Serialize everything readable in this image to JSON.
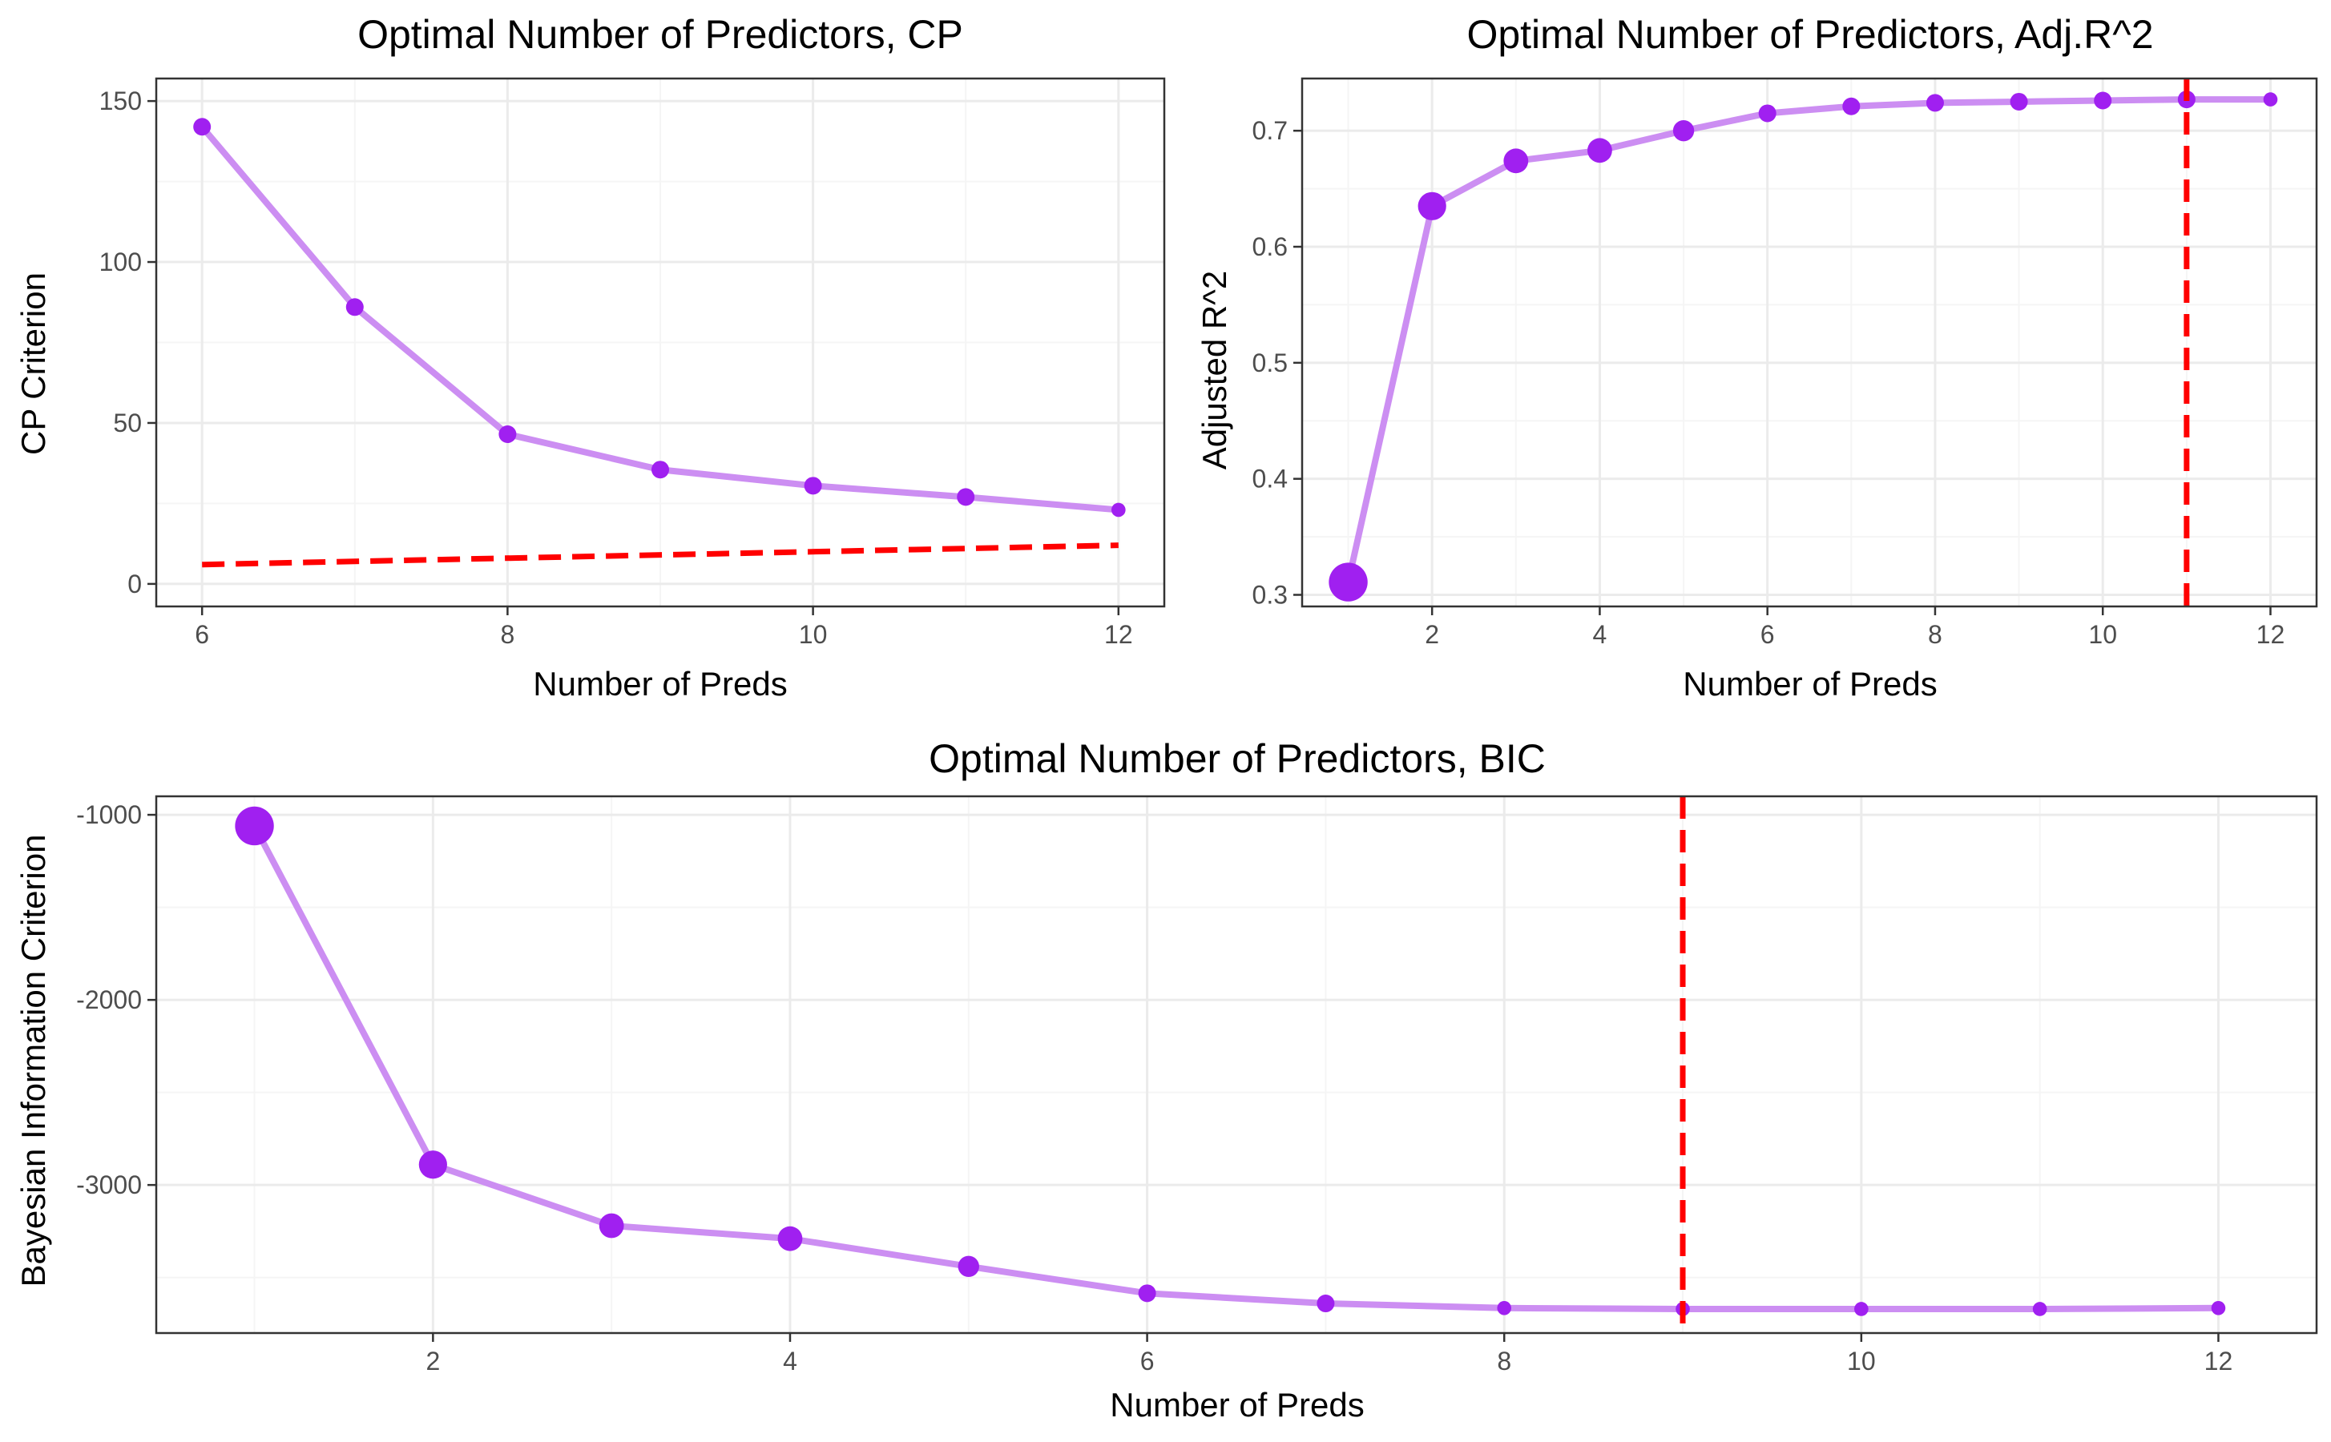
{
  "colors": {
    "line": "#cc8ef2",
    "point": "#a020f0",
    "ref": "#ff0000",
    "grid_major": "#ebebeb",
    "grid_minor": "#f5f5f5",
    "panel_border": "#333333"
  },
  "chart_data": [
    {
      "id": "cp",
      "type": "line",
      "title": "Optimal Number of Predictors, CP",
      "xlabel": "Number of Preds",
      "ylabel": "CP Criterion",
      "xlim": [
        5.7,
        12.3
      ],
      "ylim": [
        -7,
        157
      ],
      "xticks": [
        6,
        8,
        10,
        12
      ],
      "yticks": [
        0,
        50,
        100,
        150
      ],
      "grid": true,
      "series": [
        {
          "x": [
            6,
            7,
            8,
            9,
            10,
            11,
            12
          ],
          "y": [
            142,
            86,
            46.5,
            35.5,
            30.5,
            27,
            23
          ],
          "point_size": [
            5,
            5,
            5,
            5,
            5,
            5,
            4
          ]
        }
      ],
      "reference_line": {
        "style": "dashed",
        "x": [
          6,
          12
        ],
        "y": [
          6,
          12
        ]
      }
    },
    {
      "id": "adjr2",
      "type": "line",
      "title": "Optimal Number of Predictors, Adj.R^2",
      "xlabel": "Number of Preds",
      "ylabel": "Adjusted R^2",
      "xlim": [
        0.45,
        12.55
      ],
      "ylim": [
        0.29,
        0.745
      ],
      "xticks": [
        2,
        4,
        6,
        8,
        10,
        12
      ],
      "yticks": [
        0.3,
        0.4,
        0.5,
        0.6,
        0.7
      ],
      "grid": true,
      "series": [
        {
          "x": [
            1,
            2,
            3,
            4,
            5,
            6,
            7,
            8,
            9,
            10,
            11,
            12
          ],
          "y": [
            0.311,
            0.635,
            0.674,
            0.683,
            0.7,
            0.715,
            0.721,
            0.724,
            0.725,
            0.726,
            0.727,
            0.727
          ],
          "point_size": [
            11,
            8,
            7,
            7,
            6,
            5,
            5,
            5,
            5,
            5,
            5,
            4
          ]
        }
      ],
      "reference_line": {
        "style": "dashed",
        "vertical_x": 11
      }
    },
    {
      "id": "bic",
      "type": "line",
      "title": "Optimal Number of Predictors, BIC",
      "xlabel": "Number of Preds",
      "ylabel": "Bayesian Information Criterion",
      "xlim": [
        0.45,
        12.55
      ],
      "ylim": [
        -3800,
        -900
      ],
      "xticks": [
        2,
        4,
        6,
        8,
        10,
        12
      ],
      "yticks": [
        -1000,
        -2000,
        -3000
      ],
      "grid": true,
      "series": [
        {
          "x": [
            1,
            2,
            3,
            4,
            5,
            6,
            7,
            8,
            9,
            10,
            11,
            12
          ],
          "y": [
            -1060,
            -2890,
            -3220,
            -3290,
            -3440,
            -3585,
            -3640,
            -3665,
            -3670,
            -3670,
            -3670,
            -3665
          ],
          "point_size": [
            11,
            8,
            7,
            7,
            6,
            5,
            5,
            4,
            4,
            4,
            4,
            4
          ]
        }
      ],
      "reference_line": {
        "style": "dashed",
        "vertical_x": 9
      }
    }
  ]
}
